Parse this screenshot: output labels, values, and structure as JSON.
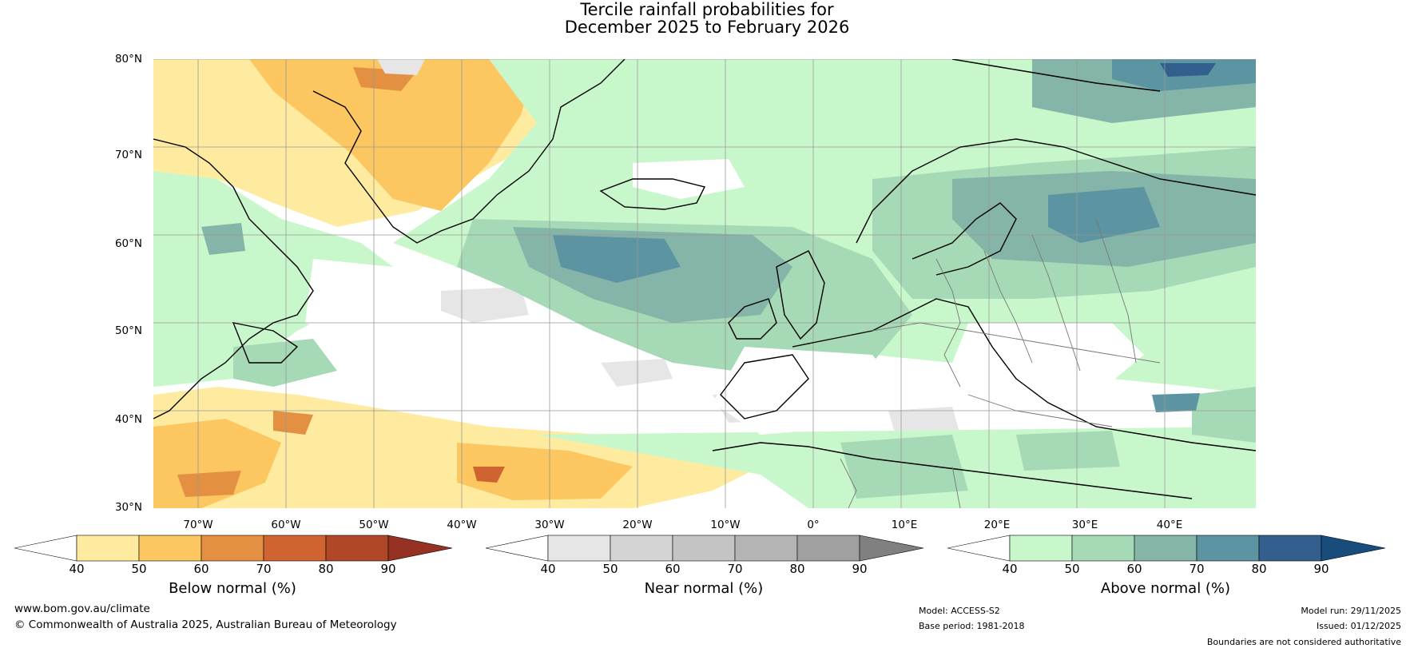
{
  "title": {
    "line1": "Tercile rainfall probabilities for",
    "line2": "December 2025 to February 2026"
  },
  "map": {
    "latitude_labels": [
      "80°N",
      "70°N",
      "60°N",
      "50°N",
      "40°N",
      "30°N"
    ],
    "longitude_labels": [
      "70°W",
      "60°W",
      "50°W",
      "40°W",
      "30°W",
      "20°W",
      "10°W",
      "0°",
      "10°E",
      "20°E",
      "30°E",
      "40°E"
    ]
  },
  "colorbars": [
    {
      "label": "Below normal (%)",
      "ticks": [
        "40",
        "50",
        "60",
        "70",
        "80",
        "90"
      ],
      "colors": [
        "#ffffff",
        "#feeba0",
        "#fcc660",
        "#e39042",
        "#cf6430",
        "#b04828",
        "#953223"
      ]
    },
    {
      "label": "Near normal (%)",
      "ticks": [
        "40",
        "50",
        "60",
        "70",
        "80",
        "90"
      ],
      "colors": [
        "#ffffff",
        "#e6e6e6",
        "#d4d4d4",
        "#c4c4c4",
        "#b4b4b4",
        "#a0a0a0",
        "#808080"
      ]
    },
    {
      "label": "Above normal (%)",
      "ticks": [
        "40",
        "50",
        "60",
        "70",
        "80",
        "90"
      ],
      "colors": [
        "#ffffff",
        "#c9f7cc",
        "#a6d9b5",
        "#85b5a8",
        "#5c94a1",
        "#325f8e",
        "#184c7d"
      ]
    }
  ],
  "footer": {
    "website": "www.bom.gov.au/climate",
    "copyright": "© Commonwealth of Australia 2025, Australian Bureau of Meteorology",
    "model": "Model: ACCESS-S2",
    "base_period": "Base period: 1981-2018",
    "model_run": "Model run: 29/11/2025",
    "issued": "Issued: 01/12/2025",
    "disclaimer": "Boundaries are not considered authoritative"
  }
}
